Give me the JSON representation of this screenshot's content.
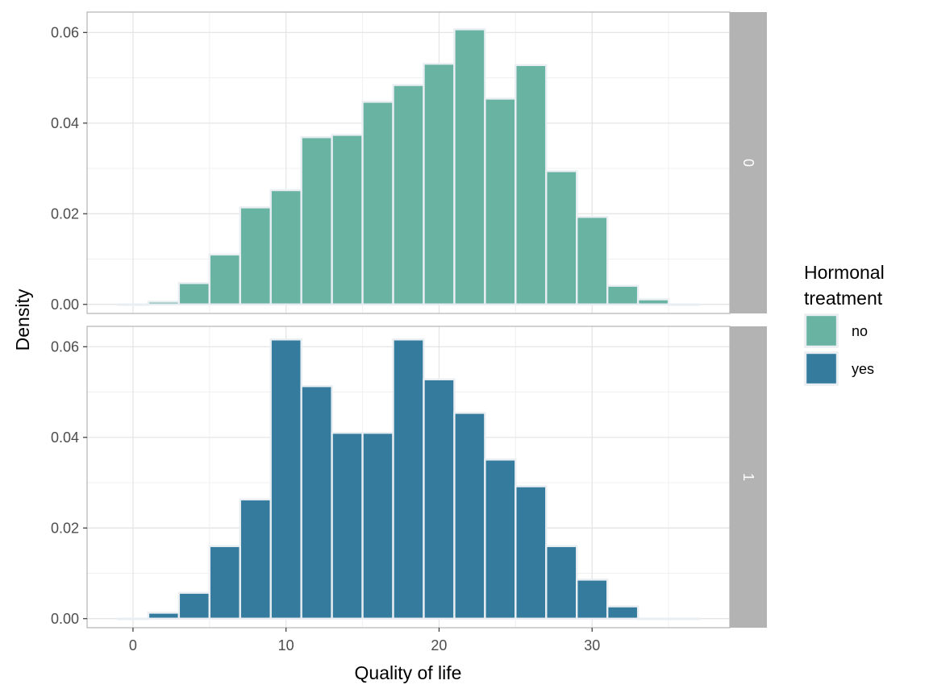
{
  "chart_data": {
    "type": "bar",
    "subtype": "faceted-histogram",
    "xlabel": "Quality of life",
    "ylabel": "Density",
    "xlim": [
      -3,
      39
    ],
    "ylim": [
      -0.002,
      0.0645
    ],
    "x_ticks": [
      0,
      10,
      20,
      30
    ],
    "y_ticks": [
      0.0,
      0.02,
      0.04,
      0.06
    ],
    "x_tick_labels": [
      "0",
      "10",
      "20",
      "30"
    ],
    "y_tick_labels": [
      "0.00",
      "0.02",
      "0.04",
      "0.06"
    ],
    "grid": true,
    "legend": {
      "title_lines": [
        "Hormonal",
        "treatment"
      ],
      "position": "right",
      "entries": [
        {
          "label": "no",
          "color": "#69b3a2"
        },
        {
          "label": "yes",
          "color": "#347b9e"
        }
      ]
    },
    "bin_edges": [
      -1,
      1,
      3,
      5,
      7,
      9,
      11,
      13,
      15,
      17,
      19,
      21,
      23,
      25,
      27,
      29,
      31,
      33,
      35,
      37
    ],
    "panels": [
      {
        "strip_label": "0",
        "series_label": "no",
        "color": "#69b3a2",
        "values": [
          0.0,
          0.0006,
          0.0047,
          0.011,
          0.0214,
          0.0252,
          0.0369,
          0.0374,
          0.0447,
          0.0484,
          0.0531,
          0.0607,
          0.0454,
          0.0528,
          0.0294,
          0.0193,
          0.0041,
          0.0011,
          0.0
        ]
      },
      {
        "strip_label": "1",
        "series_label": "yes",
        "color": "#347b9e",
        "values": [
          0.0,
          0.0013,
          0.0057,
          0.016,
          0.0263,
          0.0616,
          0.0513,
          0.041,
          0.041,
          0.0616,
          0.0528,
          0.0454,
          0.0351,
          0.0292,
          0.016,
          0.0086,
          0.0027,
          0.0,
          0.0
        ]
      }
    ]
  }
}
